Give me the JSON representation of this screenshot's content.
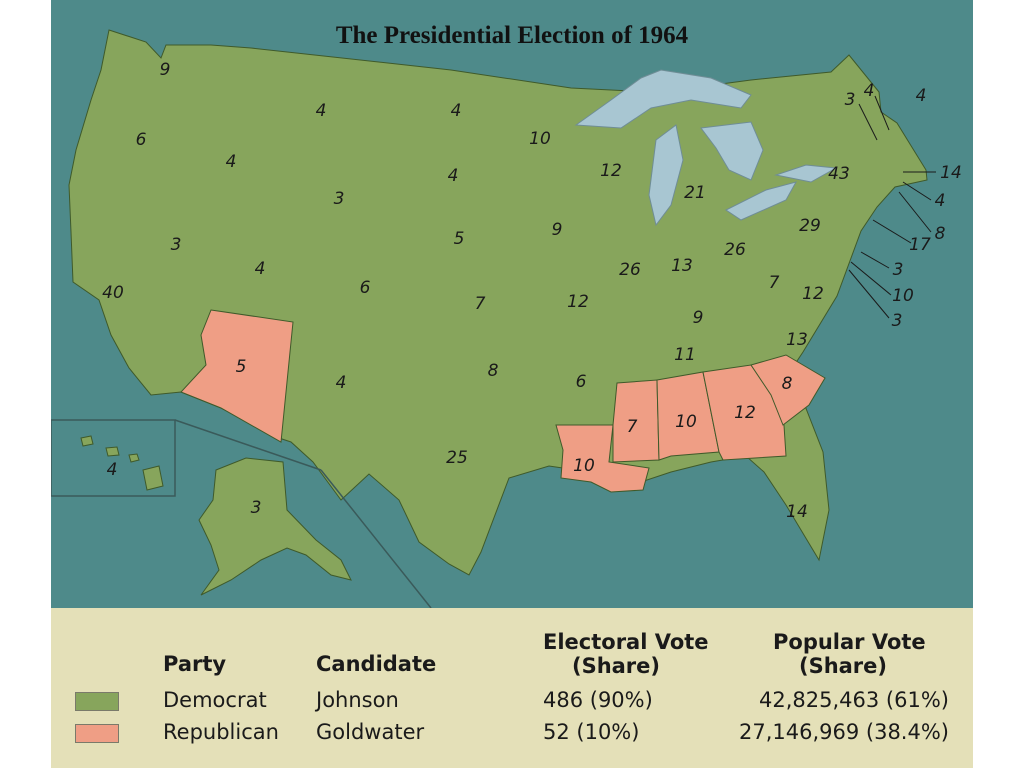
{
  "title": "The Presidential Election of 1964",
  "colors": {
    "democrat": "#87a55c",
    "republican": "#ef9e85",
    "water": "#4e8a8a",
    "lakes": "#a8c6d2",
    "legend_bg": "#e4e0b8"
  },
  "electoral_votes": [
    {
      "state": "Washington",
      "value": "9",
      "party": "democrat"
    },
    {
      "state": "Oregon",
      "value": "6",
      "party": "democrat"
    },
    {
      "state": "California",
      "value": "40",
      "party": "democrat"
    },
    {
      "state": "Idaho",
      "value": "4",
      "party": "democrat"
    },
    {
      "state": "Nevada",
      "value": "3",
      "party": "democrat"
    },
    {
      "state": "Montana",
      "value": "4",
      "party": "democrat"
    },
    {
      "state": "Wyoming",
      "value": "3",
      "party": "democrat"
    },
    {
      "state": "Utah",
      "value": "4",
      "party": "democrat"
    },
    {
      "state": "Arizona",
      "value": "5",
      "party": "republican"
    },
    {
      "state": "Colorado",
      "value": "6",
      "party": "democrat"
    },
    {
      "state": "New Mexico",
      "value": "4",
      "party": "democrat"
    },
    {
      "state": "North Dakota",
      "value": "4",
      "party": "democrat"
    },
    {
      "state": "South Dakota",
      "value": "4",
      "party": "democrat"
    },
    {
      "state": "Nebraska",
      "value": "5",
      "party": "democrat"
    },
    {
      "state": "Kansas",
      "value": "7",
      "party": "democrat"
    },
    {
      "state": "Oklahoma",
      "value": "8",
      "party": "democrat"
    },
    {
      "state": "Texas",
      "value": "25",
      "party": "democrat"
    },
    {
      "state": "Minnesota",
      "value": "10",
      "party": "democrat"
    },
    {
      "state": "Iowa",
      "value": "9",
      "party": "democrat"
    },
    {
      "state": "Missouri",
      "value": "12",
      "party": "democrat"
    },
    {
      "state": "Arkansas",
      "value": "6",
      "party": "democrat"
    },
    {
      "state": "Louisiana",
      "value": "10",
      "party": "republican"
    },
    {
      "state": "Wisconsin",
      "value": "12",
      "party": "democrat"
    },
    {
      "state": "Illinois",
      "value": "26",
      "party": "democrat"
    },
    {
      "state": "Michigan",
      "value": "21",
      "party": "democrat"
    },
    {
      "state": "Indiana",
      "value": "13",
      "party": "democrat"
    },
    {
      "state": "Ohio",
      "value": "26",
      "party": "democrat"
    },
    {
      "state": "Kentucky",
      "value": "9",
      "party": "democrat"
    },
    {
      "state": "Tennessee",
      "value": "11",
      "party": "democrat"
    },
    {
      "state": "Mississippi",
      "value": "7",
      "party": "republican"
    },
    {
      "state": "Alabama",
      "value": "10",
      "party": "republican"
    },
    {
      "state": "Georgia",
      "value": "12",
      "party": "republican"
    },
    {
      "state": "Florida",
      "value": "14",
      "party": "democrat"
    },
    {
      "state": "South Carolina",
      "value": "8",
      "party": "republican"
    },
    {
      "state": "North Carolina",
      "value": "13",
      "party": "democrat"
    },
    {
      "state": "Virginia",
      "value": "12",
      "party": "democrat"
    },
    {
      "state": "West Virginia",
      "value": "7",
      "party": "democrat"
    },
    {
      "state": "Pennsylvania",
      "value": "29",
      "party": "democrat"
    },
    {
      "state": "New York",
      "value": "43",
      "party": "democrat"
    },
    {
      "state": "Vermont",
      "value": "3",
      "party": "democrat"
    },
    {
      "state": "New Hampshire",
      "value": "4",
      "party": "democrat"
    },
    {
      "state": "Maine",
      "value": "4",
      "party": "democrat"
    },
    {
      "state": "Massachusetts",
      "value": "14",
      "party": "democrat"
    },
    {
      "state": "Rhode Island",
      "value": "4",
      "party": "democrat"
    },
    {
      "state": "Connecticut",
      "value": "8",
      "party": "democrat"
    },
    {
      "state": "New Jersey",
      "value": "17",
      "party": "democrat"
    },
    {
      "state": "Delaware",
      "value": "3",
      "party": "democrat"
    },
    {
      "state": "Maryland",
      "value": "10",
      "party": "democrat"
    },
    {
      "state": "District of Columbia",
      "value": "3",
      "party": "democrat"
    },
    {
      "state": "Alaska",
      "value": "3",
      "party": "democrat"
    },
    {
      "state": "Hawaii",
      "value": "4",
      "party": "democrat"
    }
  ],
  "legend": {
    "headers": {
      "party": "Party",
      "candidate": "Candidate",
      "electoral_line1": "Electoral Vote",
      "electoral_line2": "(Share)",
      "popular_line1": "Popular Vote",
      "popular_line2": "(Share)"
    },
    "rows": [
      {
        "party": "Democrat",
        "candidate": "Johnson",
        "electoral": "486 (90%)",
        "popular": "42,825,463 (61%)"
      },
      {
        "party": "Republican",
        "candidate": "Goldwater",
        "electoral": "52 (10%)",
        "popular": "27,146,969 (38.4%)"
      }
    ]
  }
}
